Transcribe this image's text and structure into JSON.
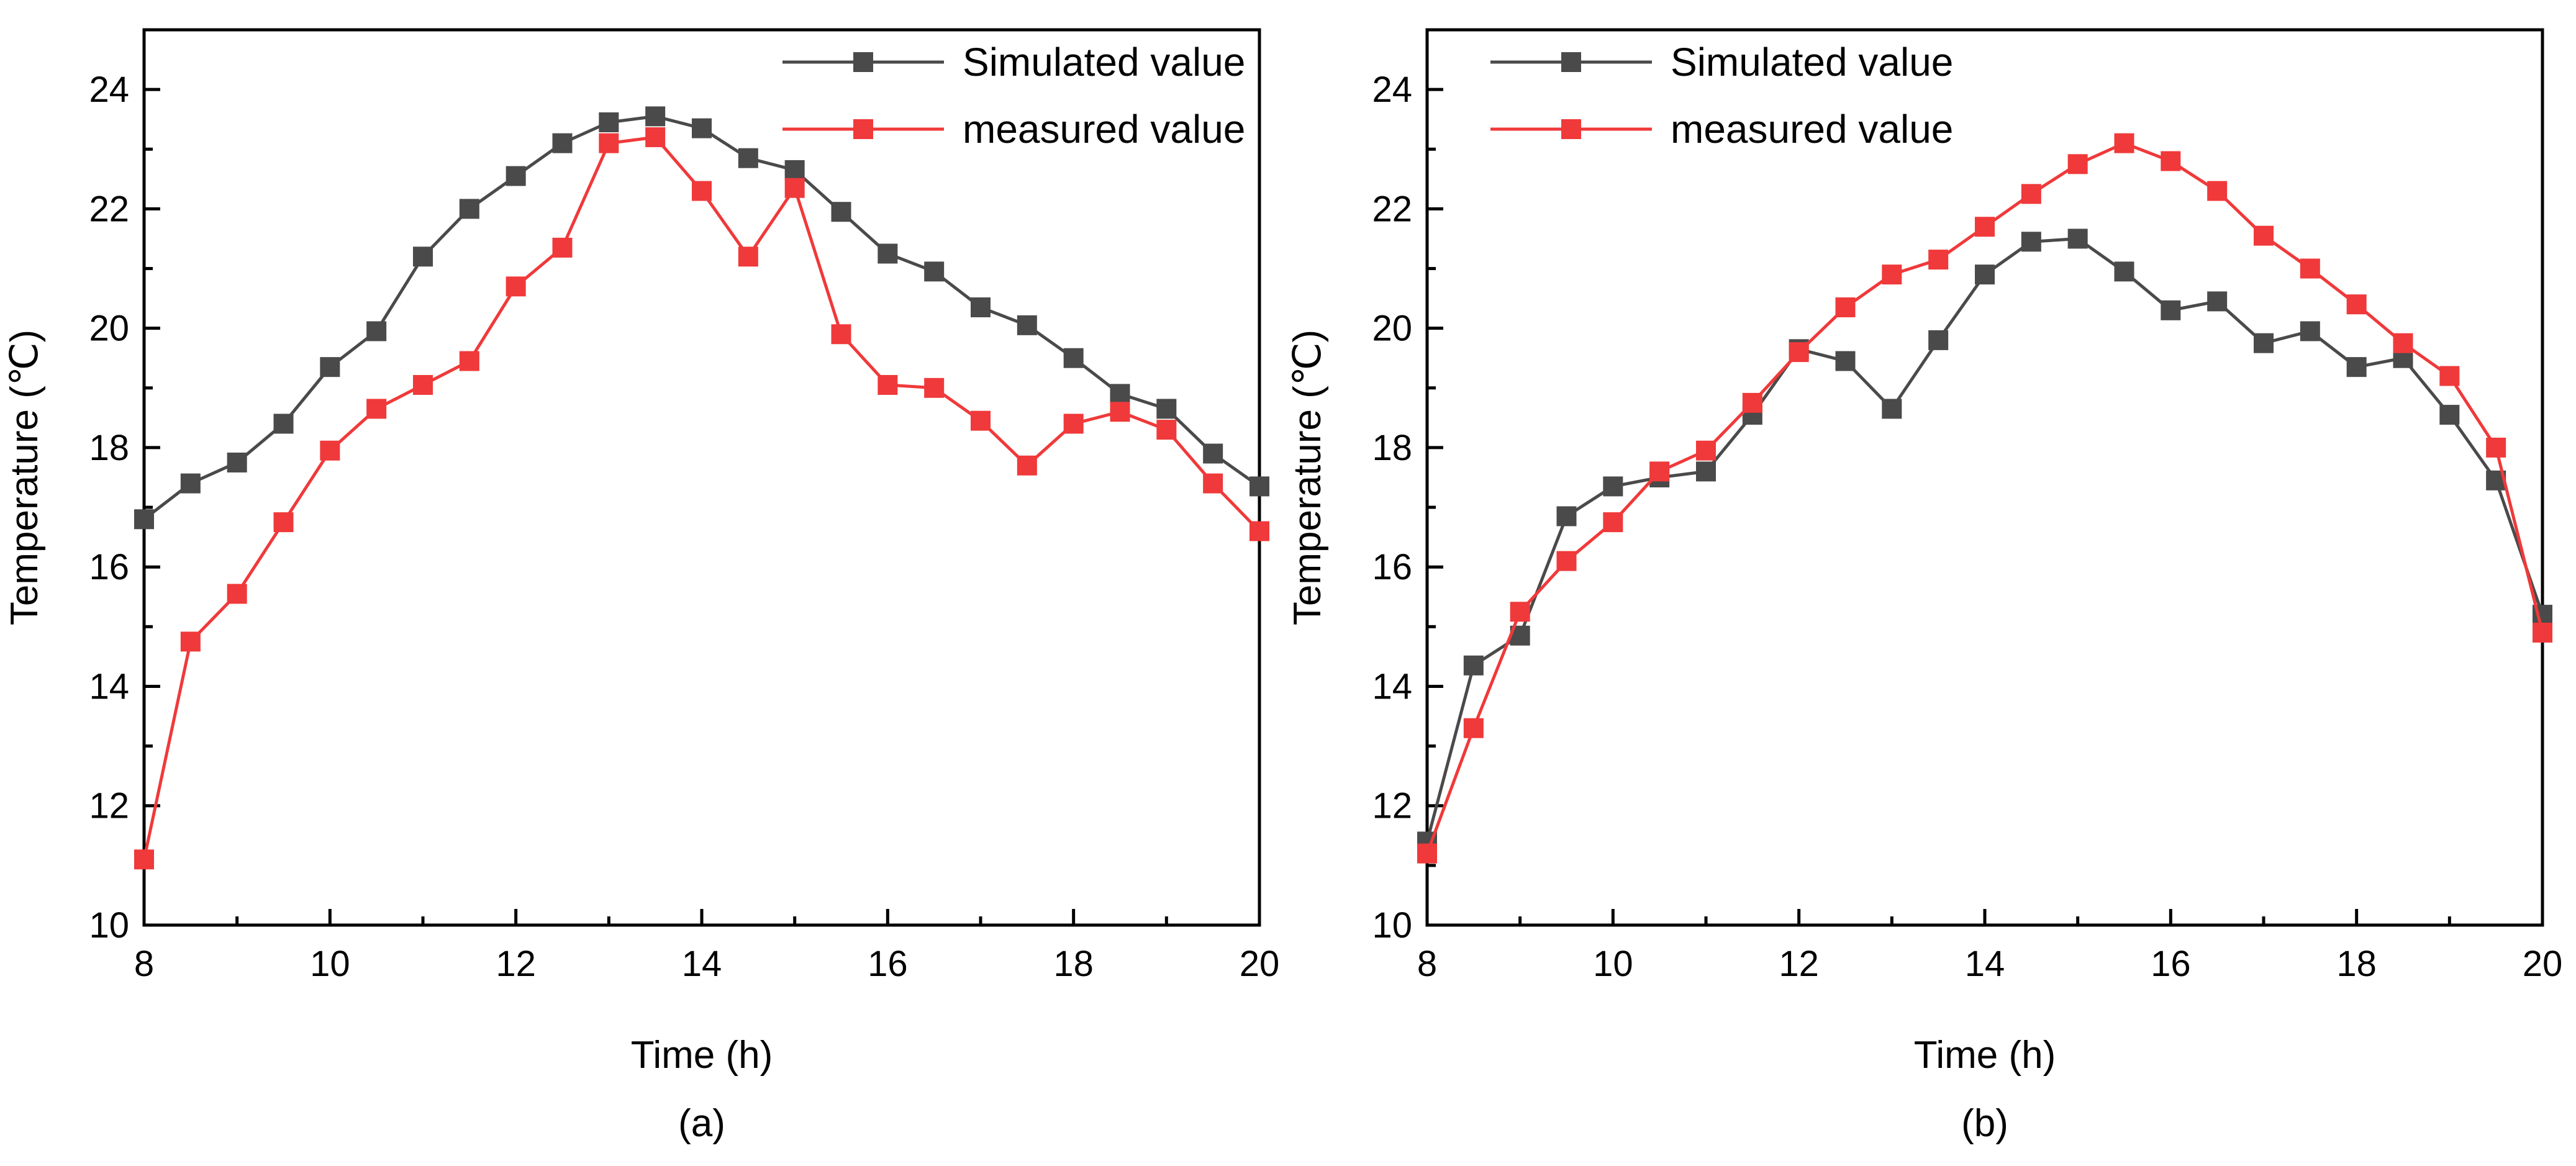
{
  "chart_data": [
    {
      "type": "line",
      "panel_label": "(a)",
      "xlabel": "Time (h)",
      "ylabel": "Temperature (℃)",
      "xlim": [
        8,
        20
      ],
      "ylim": [
        10,
        25
      ],
      "xticks": [
        8,
        10,
        12,
        14,
        16,
        18,
        20
      ],
      "yticks": [
        10,
        12,
        14,
        16,
        18,
        20,
        22,
        24
      ],
      "grid": false,
      "legend_position": "top-right",
      "x": [
        8,
        8.5,
        9,
        9.5,
        10,
        10.5,
        11,
        11.5,
        12,
        12.5,
        13,
        13.5,
        14,
        14.5,
        15,
        15.5,
        16,
        16.5,
        17,
        17.5,
        18,
        18.5,
        19,
        19.5,
        20
      ],
      "series": [
        {
          "name": "Simulated value",
          "color": "#4a4a4a",
          "marker": "square",
          "values": [
            16.8,
            17.4,
            17.75,
            18.4,
            19.35,
            19.95,
            21.2,
            22.0,
            22.55,
            23.1,
            23.45,
            23.55,
            23.35,
            22.85,
            22.65,
            21.95,
            21.25,
            20.95,
            20.35,
            20.05,
            19.5,
            18.9,
            18.65,
            17.9,
            17.35
          ]
        },
        {
          "name": "measured value",
          "color": "#f0393a",
          "marker": "square",
          "values": [
            11.1,
            14.75,
            15.55,
            16.75,
            17.95,
            18.65,
            19.05,
            19.45,
            20.7,
            21.35,
            23.1,
            23.2,
            22.3,
            21.2,
            22.35,
            19.9,
            19.05,
            19.0,
            18.45,
            17.7,
            18.4,
            18.6,
            18.3,
            17.4,
            16.6
          ]
        }
      ]
    },
    {
      "type": "line",
      "panel_label": "(b)",
      "xlabel": "Time (h)",
      "ylabel": "Temperature (℃)",
      "xlim": [
        8,
        20
      ],
      "ylim": [
        10,
        25
      ],
      "xticks": [
        8,
        10,
        12,
        14,
        16,
        18,
        20
      ],
      "yticks": [
        10,
        12,
        14,
        16,
        18,
        20,
        22,
        24
      ],
      "grid": false,
      "legend_position": "top-left",
      "x": [
        8,
        8.5,
        9,
        9.5,
        10,
        10.5,
        11,
        11.5,
        12,
        12.5,
        13,
        13.5,
        14,
        14.5,
        15,
        15.5,
        16,
        16.5,
        17,
        17.5,
        18,
        18.5,
        19,
        19.5,
        20
      ],
      "series": [
        {
          "name": "Simulated value",
          "color": "#4a4a4a",
          "marker": "square",
          "values": [
            11.4,
            14.35,
            14.85,
            16.85,
            17.35,
            17.5,
            17.6,
            18.55,
            19.65,
            19.45,
            18.65,
            19.8,
            20.9,
            21.45,
            21.5,
            20.95,
            20.3,
            20.45,
            19.75,
            19.95,
            19.35,
            19.5,
            18.55,
            17.45,
            15.2
          ]
        },
        {
          "name": "measured value",
          "color": "#f0393a",
          "marker": "square",
          "values": [
            11.2,
            13.3,
            15.25,
            16.1,
            16.75,
            17.6,
            17.95,
            18.75,
            19.6,
            20.35,
            20.9,
            21.15,
            21.7,
            22.25,
            22.75,
            23.1,
            22.8,
            22.3,
            21.55,
            21.0,
            20.4,
            19.75,
            19.2,
            18.0,
            14.9
          ]
        }
      ]
    }
  ]
}
